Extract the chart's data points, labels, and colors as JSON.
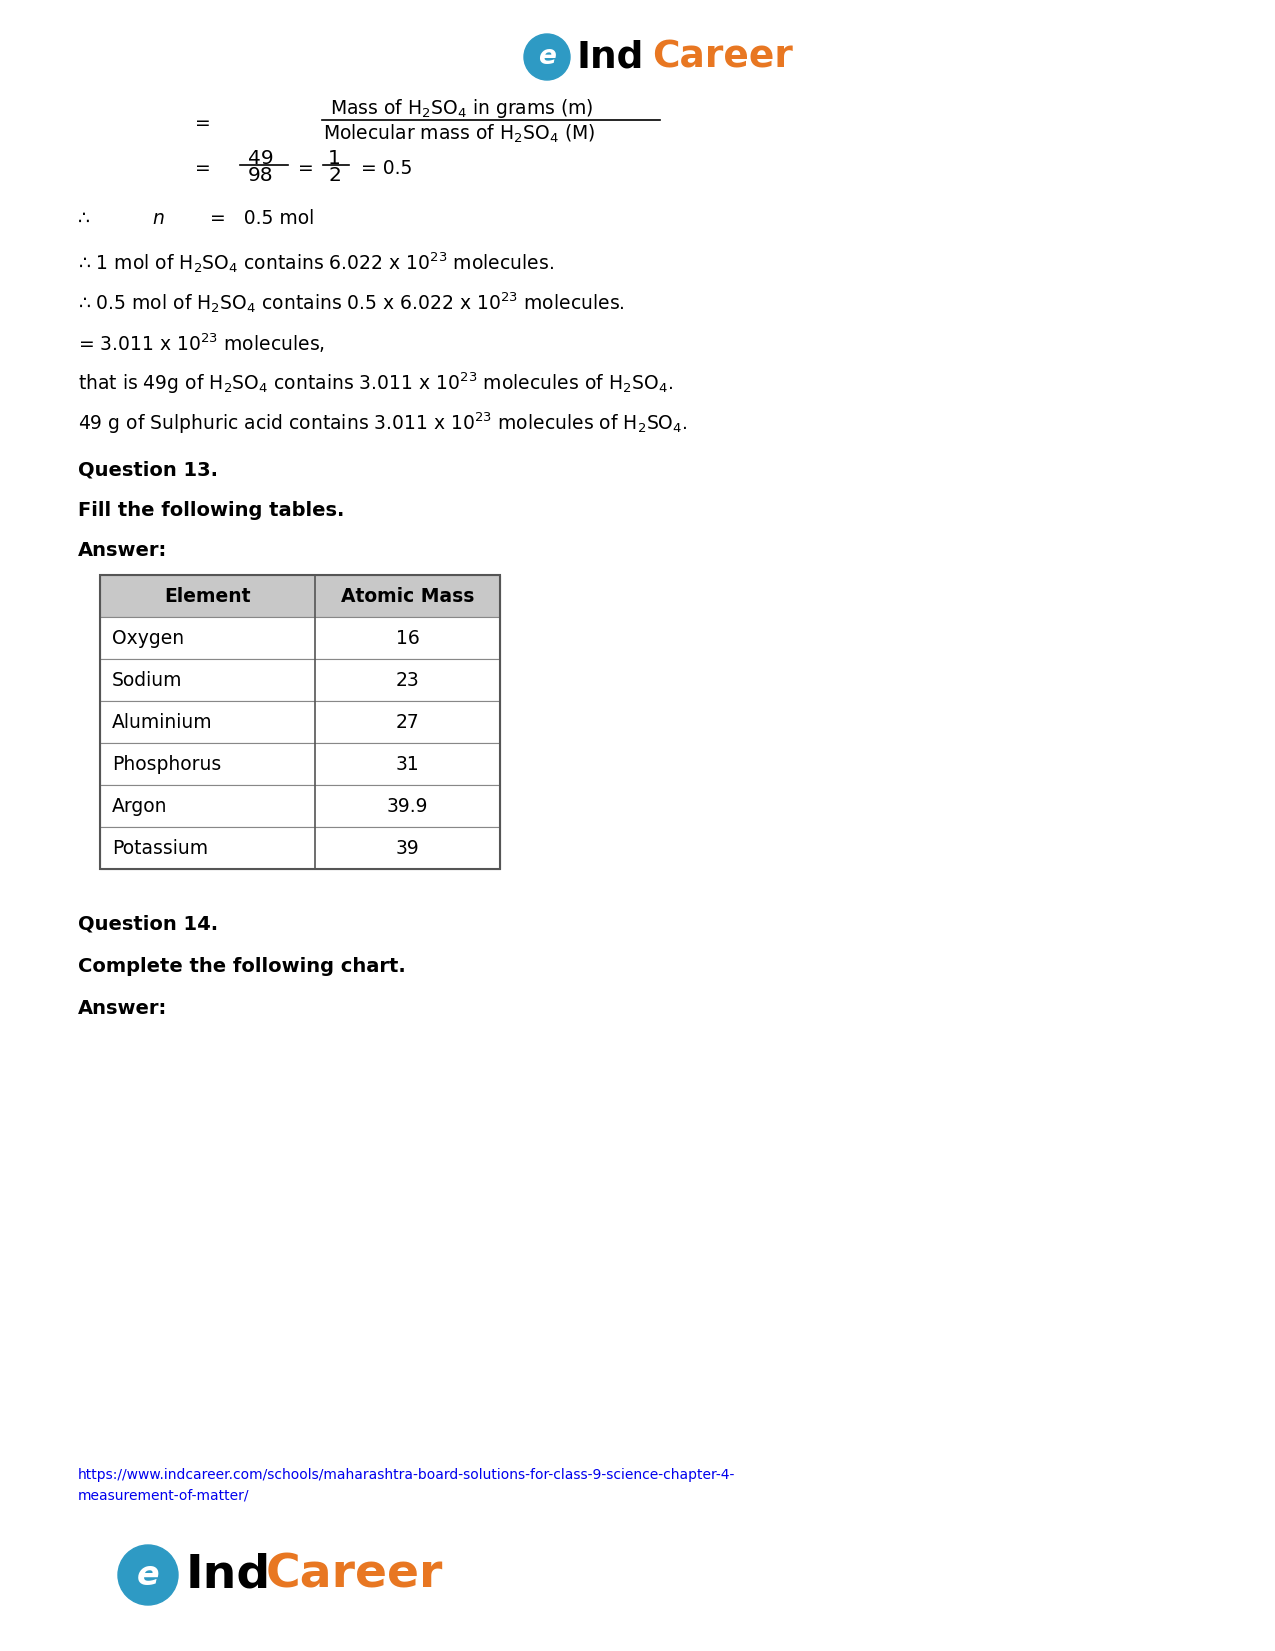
{
  "bg_color": "#ffffff",
  "page_width": 12.75,
  "page_height": 16.51,
  "table_headers": [
    "Element",
    "Atomic Mass"
  ],
  "table_rows": [
    [
      "Oxygen",
      "16"
    ],
    [
      "Sodium",
      "23"
    ],
    [
      "Aluminium",
      "27"
    ],
    [
      "Phosphorus",
      "31"
    ],
    [
      "Argon",
      "39.9"
    ],
    [
      "Potassium",
      "39"
    ]
  ],
  "logo_color_ind": "#000000",
  "logo_color_career": "#E87722",
  "logo_circle_color": "#2E9AC4",
  "header_bg": "#c8c8c8",
  "table_border": "#888888",
  "url_color": "#0000EE",
  "url_text": "https://www.indcareer.com/schools/maharashtra-board-solutions-for-class-9-science-chapter-4-measurement-of-matter/",
  "url_line1": "https://www.indcareer.com/schools/maharashtra-board-solutions-for-class-9-science-chapter-4-",
  "url_line2": "measurement-of-matter/"
}
